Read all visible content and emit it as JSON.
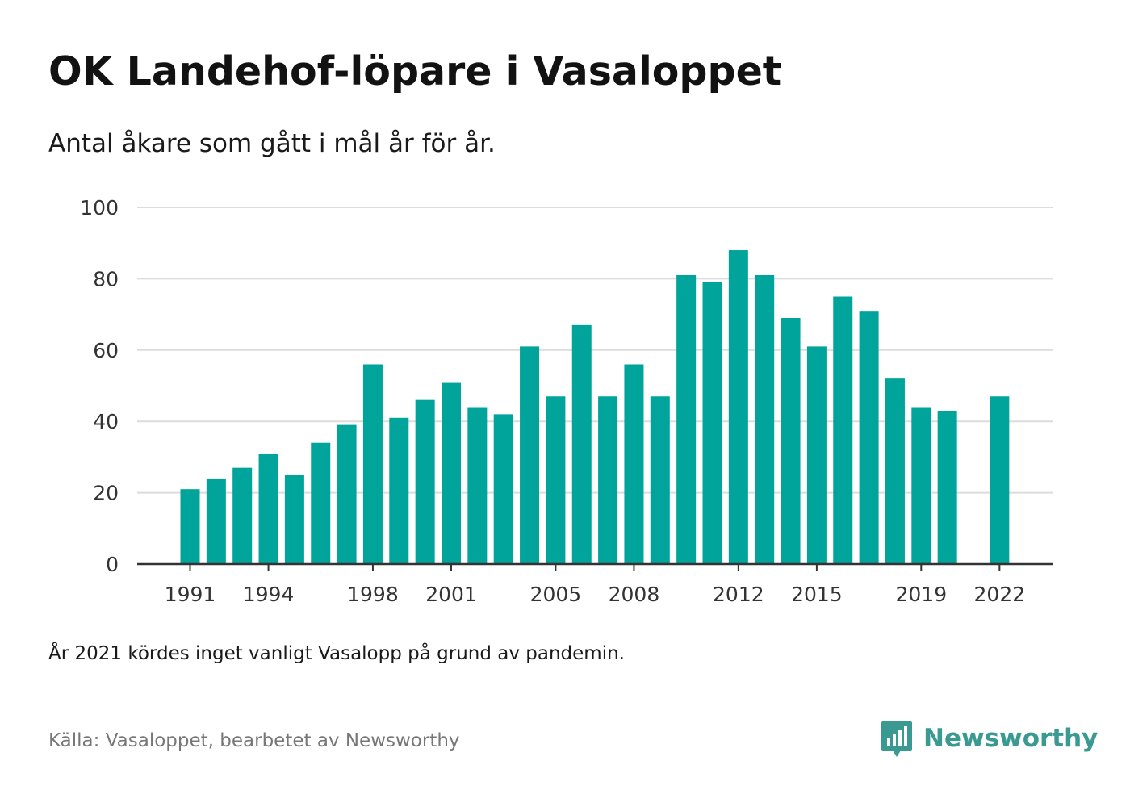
{
  "chart_data": {
    "type": "bar",
    "title": "OK Landehof-löpare i Vasaloppet",
    "subtitle": "Antal åkare som gått i mål år för år.",
    "categories": [
      1991,
      1992,
      1993,
      1994,
      1995,
      1996,
      1997,
      1998,
      1999,
      2000,
      2001,
      2002,
      2003,
      2004,
      2005,
      2006,
      2007,
      2008,
      2009,
      2010,
      2011,
      2012,
      2013,
      2014,
      2015,
      2016,
      2017,
      2018,
      2019,
      2020,
      2021,
      2022
    ],
    "values": [
      21,
      24,
      27,
      31,
      25,
      34,
      39,
      56,
      41,
      46,
      51,
      44,
      42,
      61,
      47,
      67,
      47,
      56,
      47,
      81,
      79,
      88,
      81,
      69,
      61,
      75,
      71,
      52,
      44,
      43,
      null,
      47
    ],
    "x_tick_labels": [
      "1991",
      "1994",
      "1998",
      "2001",
      "2005",
      "2008",
      "2012",
      "2015",
      "2019",
      "2022"
    ],
    "y_ticks": [
      0,
      20,
      40,
      60,
      80,
      100
    ],
    "ylim": [
      0,
      100
    ],
    "xlabel": "",
    "ylabel": "",
    "grid": true,
    "legend": "none",
    "bar_color": "#00a49a"
  },
  "note": "År 2021 kördes inget vanligt Vasalopp på grund av pandemin.",
  "source": "Källa: Vasaloppet, bearbetet av Newsworthy",
  "brand": {
    "name": "Newsworthy",
    "icon": "newsworthy-logo-icon",
    "color": "#3a9a92"
  }
}
